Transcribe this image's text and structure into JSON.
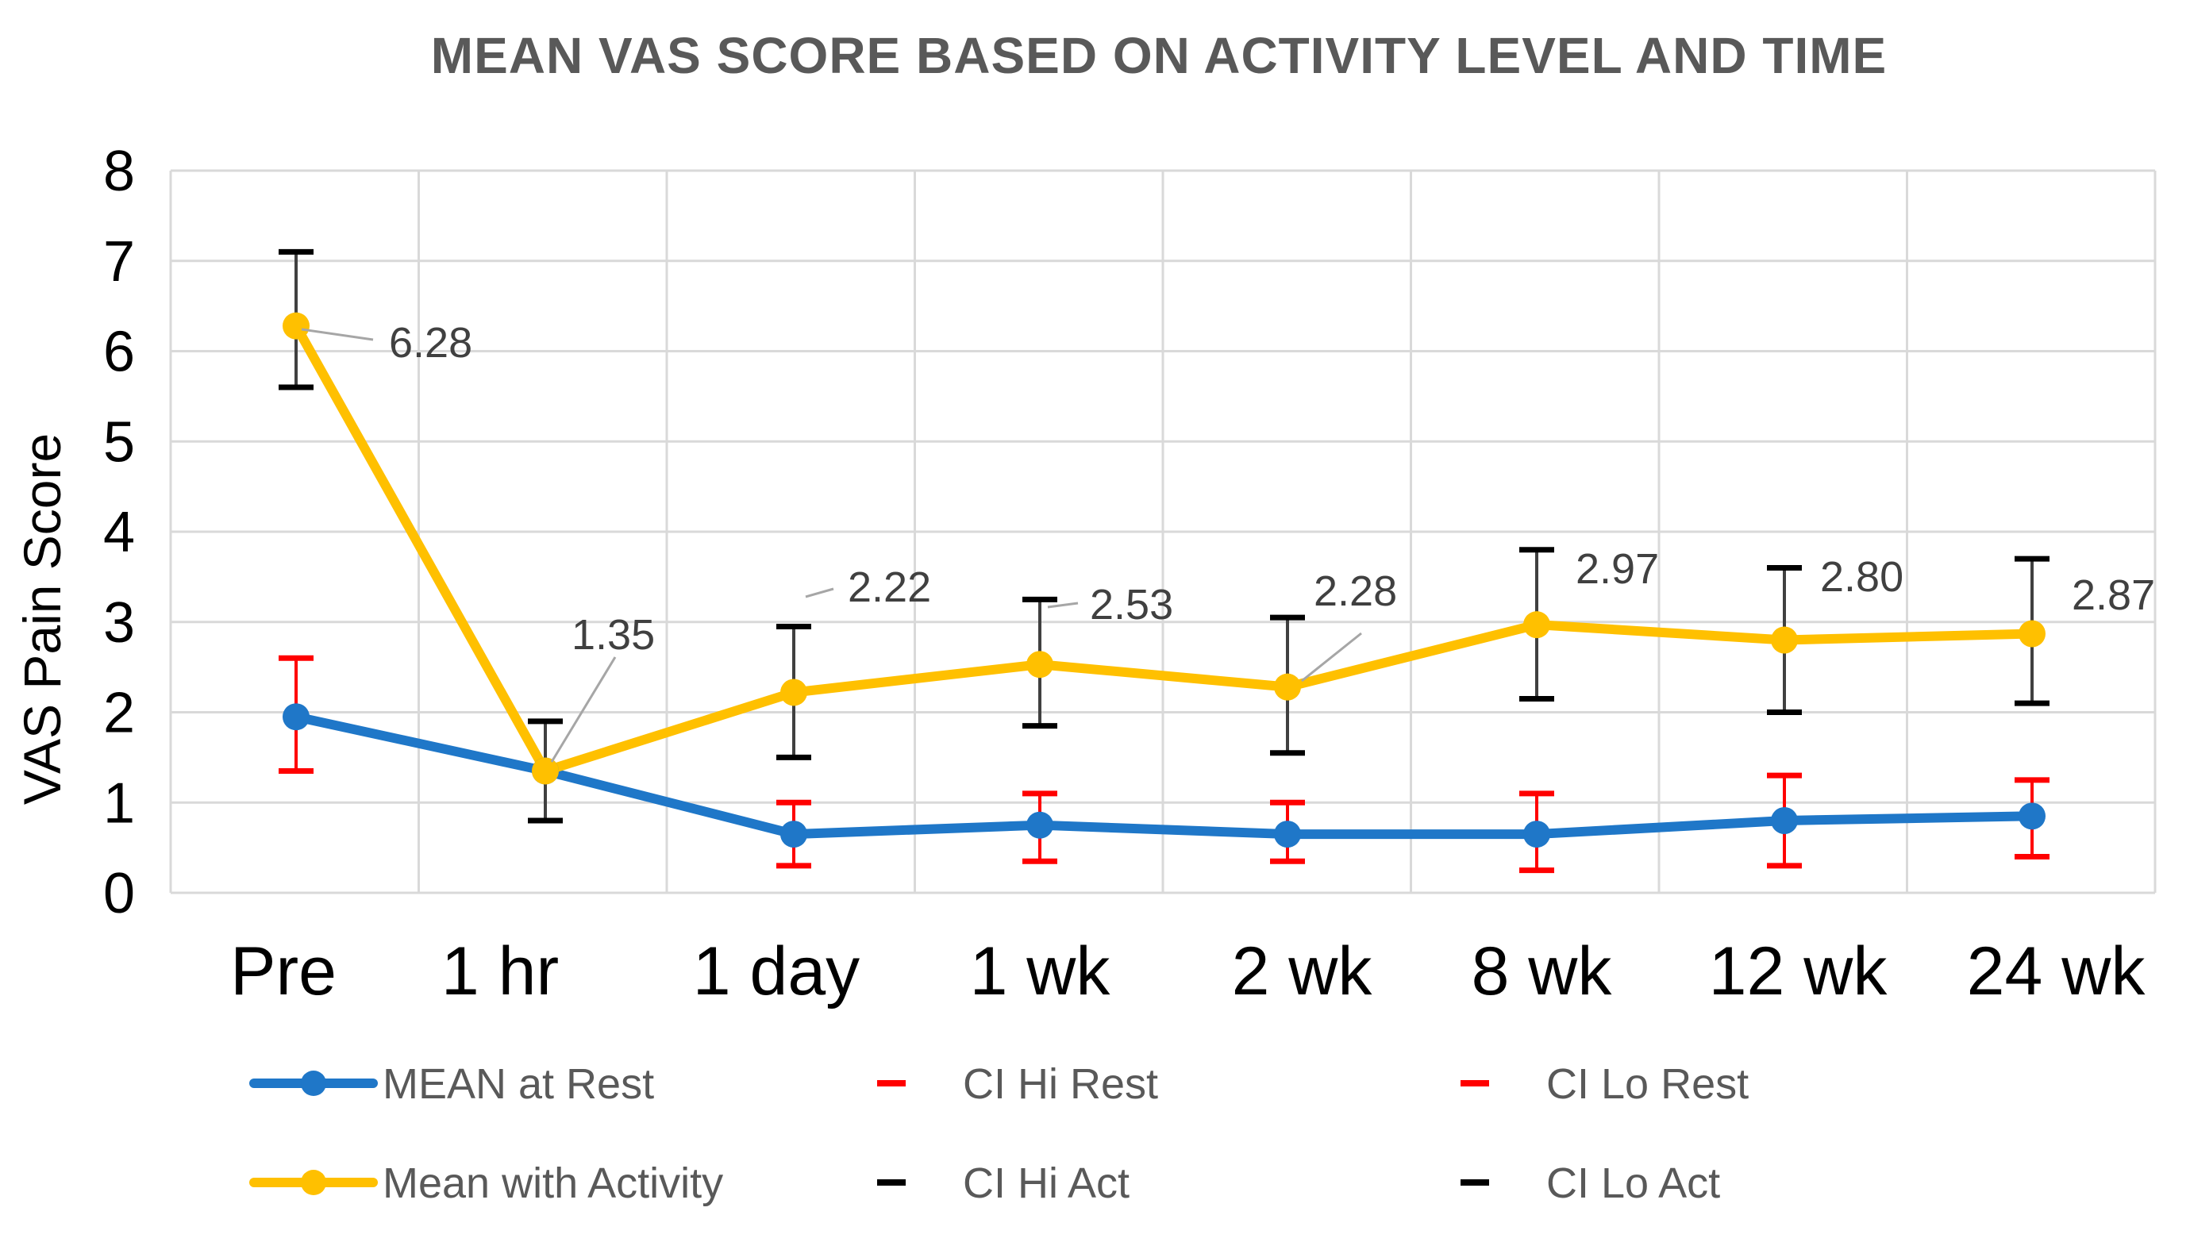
{
  "chart_data": {
    "type": "line",
    "title": "MEAN VAS SCORE BASED ON ACTIVITY LEVEL AND TIME",
    "ylabel": "VAS Pain Score",
    "xlabel": "",
    "ylim": [
      0,
      8
    ],
    "yticks": [
      "0",
      "1",
      "2",
      "3",
      "4",
      "5",
      "6",
      "7",
      "8"
    ],
    "categories": [
      "Pre",
      "1 hr",
      "1 day",
      "1 wk",
      "2 wk",
      "8 wk",
      "12 wk",
      "24 wk"
    ],
    "grid": true,
    "legend_position": "bottom",
    "series": [
      {
        "name": "MEAN at Rest",
        "color": "#1f77c8",
        "values": [
          1.95,
          1.35,
          0.65,
          0.75,
          0.65,
          0.65,
          0.8,
          0.85
        ],
        "ci_hi": [
          2.6,
          1.35,
          1.0,
          1.1,
          1.0,
          1.1,
          1.3,
          1.25
        ],
        "ci_lo": [
          1.35,
          1.35,
          0.3,
          0.35,
          0.35,
          0.25,
          0.3,
          0.4
        ],
        "error_color": "#ff0000"
      },
      {
        "name": "Mean with Activity",
        "color": "#ffc000",
        "values": [
          6.28,
          1.35,
          2.22,
          2.53,
          2.28,
          2.97,
          2.8,
          2.87
        ],
        "labels": [
          "6.28",
          "1.35",
          "2.22",
          "2.53",
          "2.28",
          "2.97",
          "2.80",
          "2.87"
        ],
        "ci_hi": [
          7.1,
          1.9,
          2.95,
          3.25,
          3.05,
          3.8,
          3.6,
          3.7
        ],
        "ci_lo": [
          5.6,
          0.8,
          1.5,
          1.85,
          1.55,
          2.15,
          2.0,
          2.1
        ],
        "error_color": "#000000"
      }
    ],
    "legend": [
      {
        "label": "MEAN at Rest",
        "kind": "line",
        "color": "#1f77c8"
      },
      {
        "label": "CI Hi Rest",
        "kind": "dash",
        "color": "#ff0000"
      },
      {
        "label": "CI Lo Rest",
        "kind": "dash",
        "color": "#ff0000"
      },
      {
        "label": "Mean with Activity",
        "kind": "line",
        "color": "#ffc000"
      },
      {
        "label": "CI Hi Act",
        "kind": "dash",
        "color": "#000000"
      },
      {
        "label": "CI Lo Act",
        "kind": "dash",
        "color": "#000000"
      }
    ]
  }
}
